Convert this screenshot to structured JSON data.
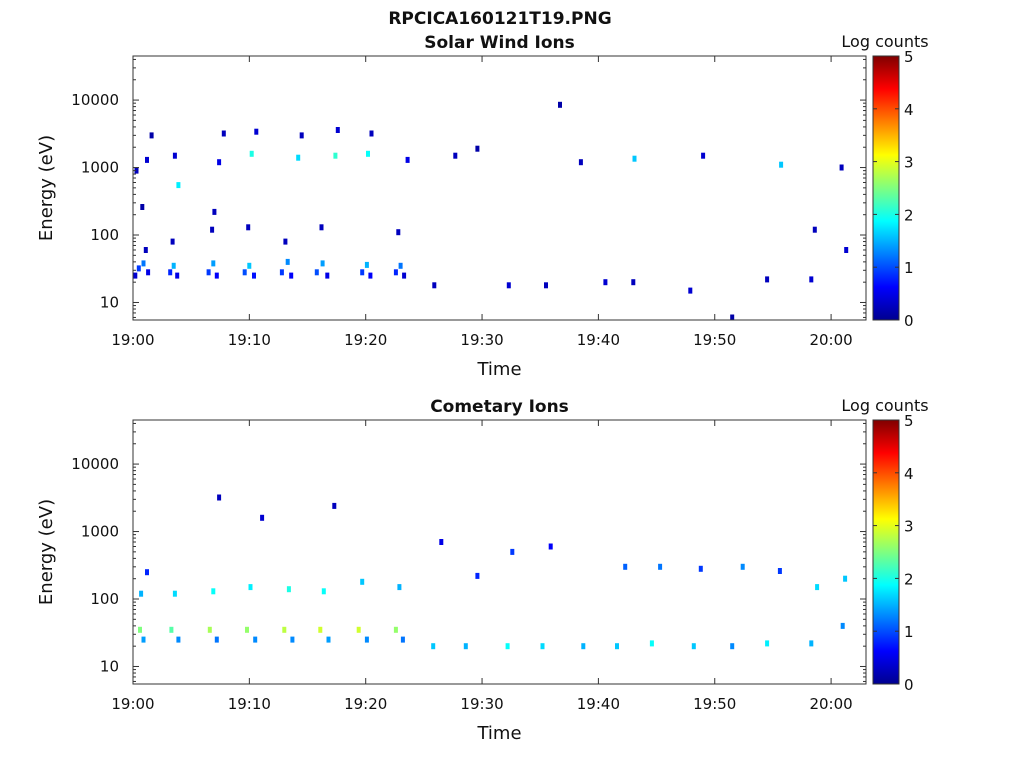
{
  "figure": {
    "title": "RPCICA160121T19.PNG"
  },
  "colorbar": {
    "label": "Log counts",
    "ticks": [
      0,
      1,
      2,
      3,
      4,
      5
    ],
    "range": [
      0,
      5
    ],
    "colormap": "jet"
  },
  "chart_data": [
    {
      "type": "heatmap",
      "title": "Solar Wind Ions",
      "xlabel": "Time",
      "ylabel": "Energy (eV)",
      "y_scale": "log",
      "ylim": [
        5.5,
        45000
      ],
      "xlim": [
        "19:00",
        "20:03"
      ],
      "x_ticks": [
        "19:00",
        "19:10",
        "19:20",
        "19:30",
        "19:40",
        "19:50",
        "20:00"
      ],
      "y_ticks": [
        10,
        100,
        1000,
        10000
      ],
      "y_tick_labels": [
        "10",
        "100",
        "1000",
        "10000"
      ],
      "colorbar_label": "Log counts",
      "clim": [
        0,
        5
      ],
      "cells": [
        {
          "t": 0.2,
          "e": 25,
          "v": 0.4
        },
        {
          "t": 0.5,
          "e": 32,
          "v": 0.9
        },
        {
          "t": 0.9,
          "e": 38,
          "v": 1.2
        },
        {
          "t": 1.3,
          "e": 28,
          "v": 0.5
        },
        {
          "t": 1.1,
          "e": 60,
          "v": 0.3
        },
        {
          "t": 0.8,
          "e": 260,
          "v": 0.2
        },
        {
          "t": 1.2,
          "e": 1300,
          "v": 0.4
        },
        {
          "t": 0.3,
          "e": 900,
          "v": 0.3
        },
        {
          "t": 1.6,
          "e": 3000,
          "v": 0.2
        },
        {
          "t": 3.2,
          "e": 28,
          "v": 0.8
        },
        {
          "t": 3.5,
          "e": 35,
          "v": 1.5
        },
        {
          "t": 3.8,
          "e": 25,
          "v": 0.5
        },
        {
          "t": 3.4,
          "e": 80,
          "v": 0.3
        },
        {
          "t": 3.9,
          "e": 550,
          "v": 1.8
        },
        {
          "t": 3.6,
          "e": 1500,
          "v": 0.4
        },
        {
          "t": 6.5,
          "e": 28,
          "v": 0.9
        },
        {
          "t": 6.9,
          "e": 38,
          "v": 1.4
        },
        {
          "t": 7.2,
          "e": 25,
          "v": 0.6
        },
        {
          "t": 6.8,
          "e": 120,
          "v": 0.3
        },
        {
          "t": 7.0,
          "e": 220,
          "v": 0.3
        },
        {
          "t": 7.4,
          "e": 1200,
          "v": 0.5
        },
        {
          "t": 7.8,
          "e": 3200,
          "v": 0.3
        },
        {
          "t": 9.6,
          "e": 28,
          "v": 1.0
        },
        {
          "t": 10.0,
          "e": 35,
          "v": 1.6
        },
        {
          "t": 10.4,
          "e": 25,
          "v": 0.7
        },
        {
          "t": 9.9,
          "e": 130,
          "v": 0.3
        },
        {
          "t": 10.2,
          "e": 1600,
          "v": 2.0
        },
        {
          "t": 10.6,
          "e": 3400,
          "v": 0.4
        },
        {
          "t": 12.8,
          "e": 28,
          "v": 0.9
        },
        {
          "t": 13.3,
          "e": 40,
          "v": 1.3
        },
        {
          "t": 13.6,
          "e": 25,
          "v": 0.6
        },
        {
          "t": 13.1,
          "e": 80,
          "v": 0.3
        },
        {
          "t": 14.2,
          "e": 1400,
          "v": 1.7
        },
        {
          "t": 14.5,
          "e": 3000,
          "v": 0.3
        },
        {
          "t": 15.8,
          "e": 28,
          "v": 1.0
        },
        {
          "t": 16.3,
          "e": 38,
          "v": 1.4
        },
        {
          "t": 16.7,
          "e": 25,
          "v": 0.5
        },
        {
          "t": 16.2,
          "e": 130,
          "v": 0.3
        },
        {
          "t": 17.4,
          "e": 1500,
          "v": 2.1
        },
        {
          "t": 17.6,
          "e": 3600,
          "v": 0.4
        },
        {
          "t": 19.7,
          "e": 28,
          "v": 0.9
        },
        {
          "t": 20.1,
          "e": 36,
          "v": 1.5
        },
        {
          "t": 20.4,
          "e": 25,
          "v": 0.6
        },
        {
          "t": 20.2,
          "e": 1600,
          "v": 1.9
        },
        {
          "t": 20.5,
          "e": 3200,
          "v": 0.3
        },
        {
          "t": 22.6,
          "e": 28,
          "v": 0.8
        },
        {
          "t": 23.0,
          "e": 35,
          "v": 1.2
        },
        {
          "t": 23.3,
          "e": 25,
          "v": 0.4
        },
        {
          "t": 22.8,
          "e": 110,
          "v": 0.3
        },
        {
          "t": 23.6,
          "e": 1300,
          "v": 0.5
        },
        {
          "t": 25.9,
          "e": 18,
          "v": 0.3
        },
        {
          "t": 27.7,
          "e": 1500,
          "v": 0.3
        },
        {
          "t": 29.6,
          "e": 1900,
          "v": 0.2
        },
        {
          "t": 32.3,
          "e": 18,
          "v": 0.4
        },
        {
          "t": 35.5,
          "e": 18,
          "v": 0.3
        },
        {
          "t": 36.7,
          "e": 8500,
          "v": 0.2
        },
        {
          "t": 38.5,
          "e": 1200,
          "v": 0.3
        },
        {
          "t": 40.6,
          "e": 20,
          "v": 0.4
        },
        {
          "t": 43.0,
          "e": 20,
          "v": 0.3
        },
        {
          "t": 43.1,
          "e": 1350,
          "v": 1.6
        },
        {
          "t": 47.9,
          "e": 15,
          "v": 0.4
        },
        {
          "t": 49.0,
          "e": 1500,
          "v": 0.4
        },
        {
          "t": 51.5,
          "e": 6,
          "v": 0.2
        },
        {
          "t": 54.5,
          "e": 22,
          "v": 0.3
        },
        {
          "t": 55.7,
          "e": 1100,
          "v": 1.6
        },
        {
          "t": 58.3,
          "e": 22,
          "v": 0.4
        },
        {
          "t": 58.6,
          "e": 120,
          "v": 0.3
        },
        {
          "t": 60.9,
          "e": 1000,
          "v": 0.3
        },
        {
          "t": 61.3,
          "e": 60,
          "v": 0.4
        }
      ]
    },
    {
      "type": "heatmap",
      "title": "Cometary Ions",
      "xlabel": "Time",
      "ylabel": "Energy (eV)",
      "y_scale": "log",
      "ylim": [
        5.5,
        45000
      ],
      "xlim": [
        "19:00",
        "20:03"
      ],
      "x_ticks": [
        "19:00",
        "19:10",
        "19:20",
        "19:30",
        "19:40",
        "19:50",
        "20:00"
      ],
      "y_ticks": [
        10,
        100,
        1000,
        10000
      ],
      "y_tick_labels": [
        "10",
        "100",
        "1000",
        "10000"
      ],
      "colorbar_label": "Log counts",
      "clim": [
        0,
        5
      ],
      "cells": [
        {
          "t": 0.6,
          "e": 35,
          "v": 2.5
        },
        {
          "t": 0.9,
          "e": 25,
          "v": 1.4
        },
        {
          "t": 0.7,
          "e": 120,
          "v": 1.5
        },
        {
          "t": 1.2,
          "e": 250,
          "v": 0.8
        },
        {
          "t": 3.3,
          "e": 35,
          "v": 2.3
        },
        {
          "t": 3.6,
          "e": 120,
          "v": 1.7
        },
        {
          "t": 3.9,
          "e": 25,
          "v": 1.3
        },
        {
          "t": 6.6,
          "e": 35,
          "v": 2.7
        },
        {
          "t": 6.9,
          "e": 130,
          "v": 1.9
        },
        {
          "t": 7.2,
          "e": 25,
          "v": 1.2
        },
        {
          "t": 7.4,
          "e": 3200,
          "v": 0.3
        },
        {
          "t": 9.8,
          "e": 35,
          "v": 2.6
        },
        {
          "t": 10.1,
          "e": 150,
          "v": 1.8
        },
        {
          "t": 10.5,
          "e": 25,
          "v": 1.3
        },
        {
          "t": 11.1,
          "e": 1600,
          "v": 0.4
        },
        {
          "t": 13.0,
          "e": 35,
          "v": 2.8
        },
        {
          "t": 13.4,
          "e": 140,
          "v": 2.0
        },
        {
          "t": 13.7,
          "e": 25,
          "v": 1.3
        },
        {
          "t": 16.1,
          "e": 35,
          "v": 2.9
        },
        {
          "t": 16.4,
          "e": 130,
          "v": 1.9
        },
        {
          "t": 16.8,
          "e": 25,
          "v": 1.4
        },
        {
          "t": 17.3,
          "e": 2400,
          "v": 0.3
        },
        {
          "t": 19.4,
          "e": 35,
          "v": 2.9
        },
        {
          "t": 19.7,
          "e": 180,
          "v": 1.6
        },
        {
          "t": 20.1,
          "e": 25,
          "v": 1.3
        },
        {
          "t": 22.6,
          "e": 35,
          "v": 2.6
        },
        {
          "t": 22.9,
          "e": 150,
          "v": 1.5
        },
        {
          "t": 23.2,
          "e": 25,
          "v": 1.2
        },
        {
          "t": 25.8,
          "e": 20,
          "v": 1.6
        },
        {
          "t": 26.5,
          "e": 700,
          "v": 0.5
        },
        {
          "t": 28.6,
          "e": 20,
          "v": 1.5
        },
        {
          "t": 29.6,
          "e": 220,
          "v": 0.8
        },
        {
          "t": 32.2,
          "e": 20,
          "v": 1.9
        },
        {
          "t": 32.6,
          "e": 500,
          "v": 0.9
        },
        {
          "t": 35.2,
          "e": 20,
          "v": 1.7
        },
        {
          "t": 35.9,
          "e": 600,
          "v": 0.6
        },
        {
          "t": 38.7,
          "e": 20,
          "v": 1.5
        },
        {
          "t": 41.6,
          "e": 20,
          "v": 1.6
        },
        {
          "t": 42.3,
          "e": 300,
          "v": 1.1
        },
        {
          "t": 44.6,
          "e": 22,
          "v": 1.9
        },
        {
          "t": 45.3,
          "e": 300,
          "v": 1.2
        },
        {
          "t": 48.2,
          "e": 20,
          "v": 1.6
        },
        {
          "t": 48.8,
          "e": 280,
          "v": 0.9
        },
        {
          "t": 51.5,
          "e": 20,
          "v": 1.3
        },
        {
          "t": 52.4,
          "e": 300,
          "v": 1.3
        },
        {
          "t": 54.5,
          "e": 22,
          "v": 1.8
        },
        {
          "t": 55.6,
          "e": 260,
          "v": 0.9
        },
        {
          "t": 58.3,
          "e": 22,
          "v": 1.5
        },
        {
          "t": 58.8,
          "e": 150,
          "v": 1.7
        },
        {
          "t": 61.0,
          "e": 40,
          "v": 1.3
        },
        {
          "t": 61.2,
          "e": 200,
          "v": 1.6
        }
      ]
    }
  ]
}
